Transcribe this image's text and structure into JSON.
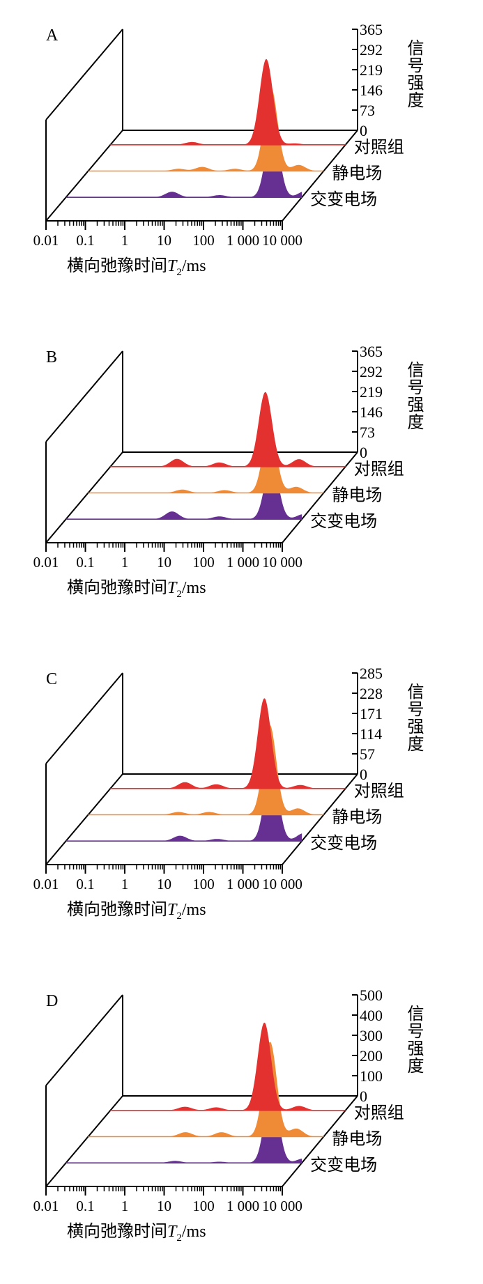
{
  "chart_data": [
    {
      "type": "area",
      "panel": "A",
      "y_ticks": [
        "365",
        "292",
        "219",
        "146",
        "73",
        "0"
      ],
      "ylim": [
        0,
        365
      ],
      "ylabel": "信号强度",
      "x_ticks": [
        "0.01",
        "0.1",
        "1",
        "10",
        "100",
        "1 000",
        "10 000"
      ],
      "xlim": [
        0.01,
        10000
      ],
      "x_scale": "log",
      "xlabel": "横向弛豫时间T2/ms",
      "series": [
        {
          "name": "对照组",
          "color": "#e2312f",
          "peaks": [
            {
              "t2": 1.2,
              "amp": 10
            },
            {
              "t2": 95,
              "amp": 310
            },
            {
              "t2": 500,
              "amp": 5
            }
          ]
        },
        {
          "name": "静电场",
          "color": "#ef8a36",
          "peaks": [
            {
              "t2": 2.0,
              "amp": 8
            },
            {
              "t2": 8,
              "amp": 15
            },
            {
              "t2": 55,
              "amp": 8
            },
            {
              "t2": 450,
              "amp": 305
            },
            {
              "t2": 2300,
              "amp": 22
            }
          ]
        },
        {
          "name": "交变电场",
          "color": "#663092",
          "peaks": [
            {
              "t2": 5,
              "amp": 20
            },
            {
              "t2": 80,
              "amp": 8
            },
            {
              "t2": 1800,
              "amp": 265
            },
            {
              "t2": 12000,
              "amp": 22
            }
          ]
        }
      ]
    },
    {
      "type": "area",
      "panel": "B",
      "y_ticks": [
        "365",
        "292",
        "219",
        "146",
        "73",
        "0"
      ],
      "ylim": [
        0,
        365
      ],
      "ylabel": "信号强度",
      "x_ticks": [
        "0.01",
        "0.1",
        "1",
        "10",
        "100",
        "1 000",
        "10 000"
      ],
      "xlim": [
        0.01,
        10000
      ],
      "x_scale": "log",
      "xlabel": "横向弛豫时间T2/ms",
      "series": [
        {
          "name": "对照组",
          "color": "#e2312f",
          "peaks": [
            {
              "t2": 0.5,
              "amp": 28
            },
            {
              "t2": 6,
              "amp": 15
            },
            {
              "t2": 90,
              "amp": 270
            },
            {
              "t2": 650,
              "amp": 27
            }
          ]
        },
        {
          "name": "静电场",
          "color": "#ef8a36",
          "peaks": [
            {
              "t2": 2.5,
              "amp": 12
            },
            {
              "t2": 30,
              "amp": 10
            },
            {
              "t2": 420,
              "amp": 245
            },
            {
              "t2": 2000,
              "amp": 22
            }
          ]
        },
        {
          "name": "交变电场",
          "color": "#663092",
          "peaks": [
            {
              "t2": 5,
              "amp": 28
            },
            {
              "t2": 80,
              "amp": 10
            },
            {
              "t2": 1700,
              "amp": 215
            },
            {
              "t2": 11000,
              "amp": 18
            }
          ]
        }
      ]
    },
    {
      "type": "area",
      "panel": "C",
      "y_ticks": [
        "285",
        "228",
        "171",
        "114",
        "57",
        "0"
      ],
      "ylim": [
        0,
        285
      ],
      "ylabel": "信号强度",
      "x_ticks": [
        "0.01",
        "0.1",
        "1",
        "10",
        "100",
        "1 000",
        "10 000"
      ],
      "xlim": [
        0.01,
        10000
      ],
      "x_scale": "log",
      "xlabel": "横向弛豫时间T2/ms",
      "series": [
        {
          "name": "对照组",
          "color": "#e2312f",
          "peaks": [
            {
              "t2": 0.8,
              "amp": 18
            },
            {
              "t2": 5,
              "amp": 12
            },
            {
              "t2": 85,
              "amp": 255
            },
            {
              "t2": 700,
              "amp": 10
            }
          ]
        },
        {
          "name": "静电场",
          "color": "#ef8a36",
          "peaks": [
            {
              "t2": 2.0,
              "amp": 8
            },
            {
              "t2": 12,
              "amp": 8
            },
            {
              "t2": 420,
              "amp": 255
            },
            {
              "t2": 2200,
              "amp": 18
            }
          ]
        },
        {
          "name": "交变电场",
          "color": "#663092",
          "peaks": [
            {
              "t2": 8,
              "amp": 15
            },
            {
              "t2": 70,
              "amp": 6
            },
            {
              "t2": 1700,
              "amp": 222
            },
            {
              "t2": 11000,
              "amp": 22
            }
          ]
        }
      ]
    },
    {
      "type": "area",
      "panel": "D",
      "y_ticks": [
        "500",
        "400",
        "300",
        "200",
        "100",
        "0"
      ],
      "ylim": [
        0,
        500
      ],
      "ylabel": "信号强度",
      "x_ticks": [
        "0.01",
        "0.1",
        "1",
        "10",
        "100",
        "1 000",
        "10 000"
      ],
      "xlim": [
        0.01,
        10000
      ],
      "x_scale": "log",
      "xlabel": "横向弛豫时间T2/ms",
      "series": [
        {
          "name": "对照组",
          "color": "#e2312f",
          "peaks": [
            {
              "t2": 0.8,
              "amp": 18
            },
            {
              "t2": 5,
              "amp": 15
            },
            {
              "t2": 85,
              "amp": 435
            },
            {
              "t2": 650,
              "amp": 22
            }
          ]
        },
        {
          "name": "静电场",
          "color": "#ef8a36",
          "peaks": [
            {
              "t2": 3,
              "amp": 22
            },
            {
              "t2": 25,
              "amp": 22
            },
            {
              "t2": 430,
              "amp": 470
            },
            {
              "t2": 2000,
              "amp": 40
            }
          ]
        },
        {
          "name": "交变电场",
          "color": "#663092",
          "peaks": [
            {
              "t2": 6,
              "amp": 10
            },
            {
              "t2": 80,
              "amp": 6
            },
            {
              "t2": 1700,
              "amp": 390
            },
            {
              "t2": 11000,
              "amp": 22
            }
          ]
        }
      ]
    }
  ]
}
